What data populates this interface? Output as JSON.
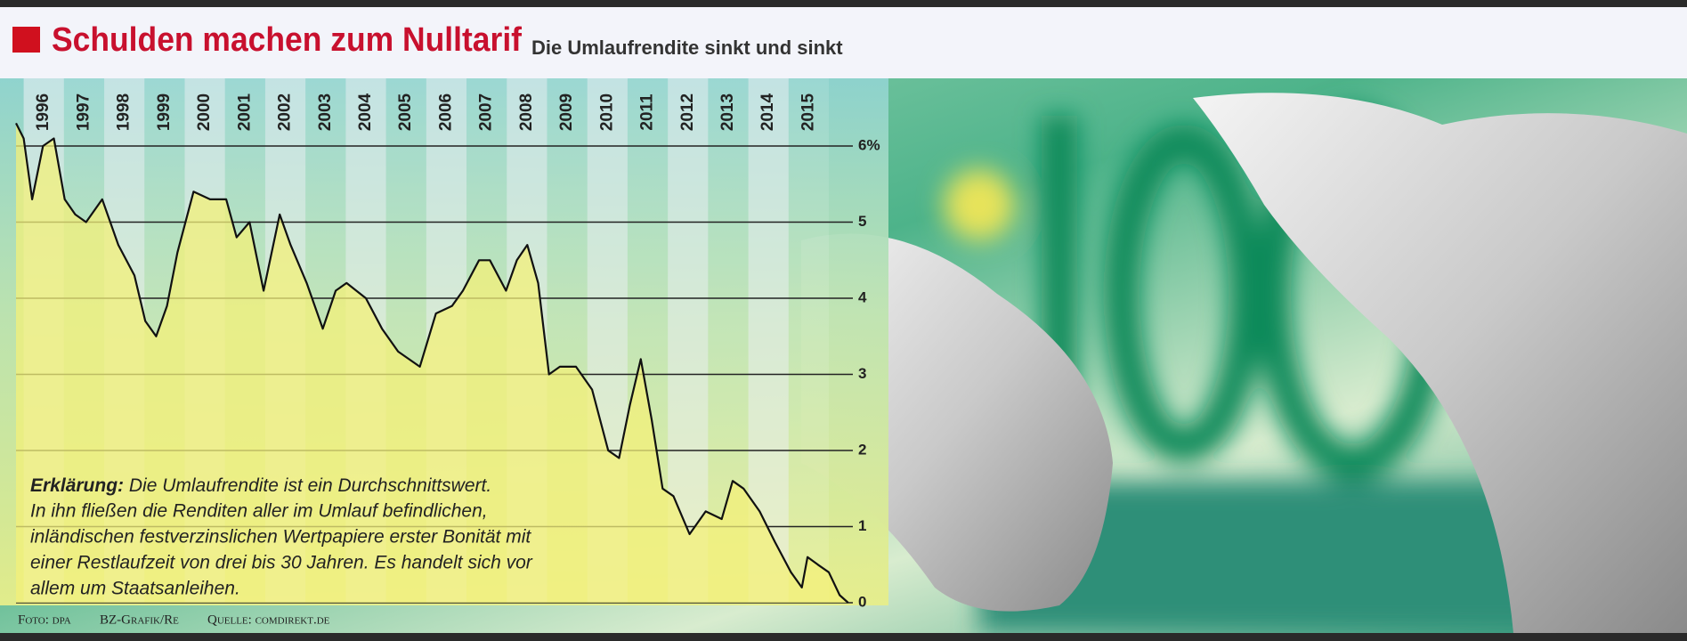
{
  "chart_data": {
    "type": "area",
    "title": "Schulden machen zum Nulltarif",
    "subtitle": "Die Umlaufrendite sinkt und sinkt",
    "annotation": {
      "label": "Erklärung:",
      "text": "Die Umlaufrendite ist ein Durchschnittswert.",
      "lines": [
        "In ihn fließen die Renditen aller im Umlauf befindlichen,",
        "inländischen festverzinslichen Wertpapiere erster Bonität mit",
        "einer Restlaufzeit von drei bis 30 Jahren. Es handelt sich vor",
        "allem um Staatsanleihen."
      ]
    },
    "credits": [
      "Foto: dpa",
      "BZ-Grafik/Re",
      "Quelle: comdirekt.de"
    ],
    "x": [
      1995.81,
      1996.0,
      1996.21,
      1996.48,
      1996.75,
      1997.02,
      1997.28,
      1997.55,
      1997.95,
      1998.35,
      1998.75,
      1999.02,
      1999.29,
      1999.56,
      1999.82,
      2000.22,
      2000.63,
      2001.03,
      2001.29,
      2001.61,
      2001.96,
      2002.36,
      2002.63,
      2003.03,
      2003.43,
      2003.75,
      2004.02,
      2004.5,
      2004.9,
      2005.3,
      2005.84,
      2006.24,
      2006.64,
      2006.91,
      2007.31,
      2007.58,
      2007.98,
      2008.25,
      2008.51,
      2008.78,
      2009.05,
      2009.32,
      2009.72,
      2010.12,
      2010.52,
      2010.79,
      2011.06,
      2011.33,
      2011.6,
      2011.87,
      2012.14,
      2012.54,
      2012.94,
      2013.34,
      2013.61,
      2013.88,
      2014.28,
      2014.66,
      2015.06,
      2015.33,
      2015.47,
      2015.73,
      2016.0,
      2016.27,
      2016.48
    ],
    "values": [
      6.3,
      6.1,
      5.3,
      6.0,
      6.1,
      5.3,
      5.1,
      5.0,
      5.3,
      4.7,
      4.3,
      3.7,
      3.5,
      3.9,
      4.6,
      5.4,
      5.3,
      5.3,
      4.8,
      5.0,
      4.1,
      5.1,
      4.7,
      4.2,
      3.6,
      4.1,
      4.2,
      4.0,
      3.6,
      3.3,
      3.1,
      3.8,
      3.9,
      4.1,
      4.5,
      4.5,
      4.1,
      4.5,
      4.7,
      4.2,
      3.0,
      3.1,
      3.1,
      2.8,
      2.0,
      1.9,
      2.6,
      3.2,
      2.4,
      1.5,
      1.4,
      0.9,
      1.2,
      1.1,
      1.6,
      1.5,
      1.2,
      0.8,
      0.4,
      0.2,
      0.6,
      0.5,
      0.4,
      0.1,
      0.0
    ],
    "color": "#111111",
    "fill": "#f3f07a",
    "xlim": [
      1995.81,
      2016.53
    ],
    "xticks": [
      1996,
      1997,
      1998,
      1999,
      2000,
      2001,
      2002,
      2003,
      2004,
      2005,
      2006,
      2007,
      2008,
      2009,
      2010,
      2011,
      2012,
      2013,
      2014,
      2015
    ],
    "ylim": [
      0,
      6
    ],
    "yticks": [
      0,
      1,
      2,
      3,
      4,
      5,
      {
        "value": 6,
        "label": "6%"
      }
    ],
    "grid": true
  }
}
